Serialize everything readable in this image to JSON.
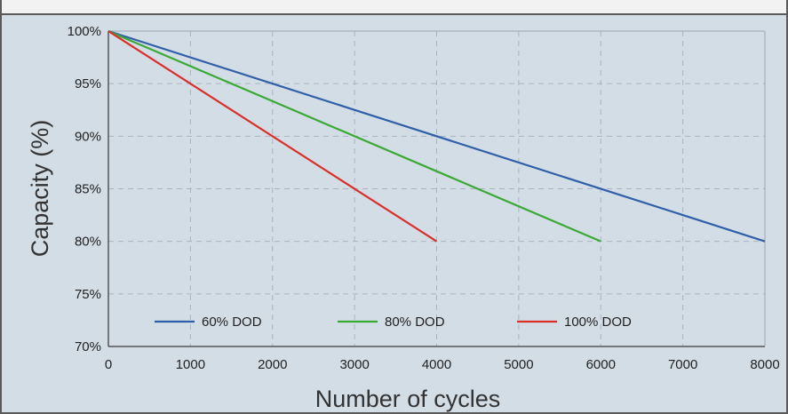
{
  "chart_data": {
    "type": "line",
    "title": "",
    "xlabel": "Number of cycles",
    "ylabel": "Capacity (%)",
    "xlim": [
      0,
      8000
    ],
    "ylim": [
      70,
      100
    ],
    "xticks": [
      "0",
      "1000",
      "2000",
      "3000",
      "4000",
      "5000",
      "6000",
      "7000",
      "8000"
    ],
    "yticks": [
      "70%",
      "75%",
      "80%",
      "85%",
      "90%",
      "95%",
      "100%"
    ],
    "grid": true,
    "legend_position": "bottom-left",
    "series": [
      {
        "name": "60% DOD",
        "color": "#2f5fa8",
        "x": [
          0,
          8000
        ],
        "y": [
          100,
          80
        ]
      },
      {
        "name": "80% DOD",
        "color": "#3aaa35",
        "x": [
          0,
          6000
        ],
        "y": [
          100,
          80
        ]
      },
      {
        "name": "100% DOD",
        "color": "#d9302a",
        "x": [
          0,
          4000
        ],
        "y": [
          100,
          80
        ]
      }
    ]
  },
  "colors": {
    "background": "#d3dde6",
    "plot_background": "#d3dde6",
    "axis": "#555555",
    "grid": "#a8b4c0"
  }
}
